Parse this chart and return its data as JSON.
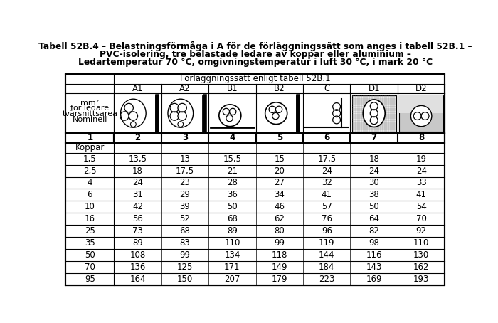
{
  "title_line1": "Tabell 52B.4 – Belastningsförmåga i A för de förläggningssätt som anges i tabell 52B.1 –",
  "title_line2": "PVC-isolering, tre belastade ledare av koppar eller aluminium –",
  "title_line3": "Ledartemperatur 70 °C, omgivningstemperatur i luft 30 °C, i mark 20 °C",
  "col_header_main": "Förläggningssätt enligt tabell 52B.1",
  "col_headers": [
    "A1",
    "A2",
    "B1",
    "B2",
    "C",
    "D1",
    "D2"
  ],
  "col_numbers": [
    "1",
    "2",
    "3",
    "4",
    "5",
    "6",
    "7",
    "8"
  ],
  "row_header_lines": [
    "Nominell",
    "tvärsnittsarea",
    "för ledare",
    "mm²"
  ],
  "section_label": "Koppar",
  "cross_sections": [
    "1,5",
    "2,5",
    "4",
    "6",
    "10",
    "16",
    "25",
    "35",
    "50",
    "70",
    "95"
  ],
  "data": [
    [
      13.5,
      13,
      15.5,
      15,
      17.5,
      18,
      19
    ],
    [
      18,
      17.5,
      21,
      20,
      24,
      24,
      24
    ],
    [
      24,
      23,
      28,
      27,
      32,
      30,
      33
    ],
    [
      31,
      29,
      36,
      34,
      41,
      38,
      41
    ],
    [
      42,
      39,
      50,
      46,
      57,
      50,
      54
    ],
    [
      56,
      52,
      68,
      62,
      76,
      64,
      70
    ],
    [
      73,
      68,
      89,
      80,
      96,
      82,
      92
    ],
    [
      89,
      83,
      110,
      99,
      119,
      98,
      110
    ],
    [
      108,
      99,
      134,
      118,
      144,
      116,
      130
    ],
    [
      136,
      125,
      171,
      149,
      184,
      143,
      162
    ],
    [
      164,
      150,
      207,
      179,
      223,
      169,
      193
    ]
  ],
  "bg_color": "#ffffff",
  "d1_grid_color": "#cccccc",
  "d2_fill_color": "#c8c8c8",
  "title_fontsize": 8.8,
  "header_fontsize": 8.5,
  "data_fontsize": 8.5,
  "small_fontsize": 7.5
}
